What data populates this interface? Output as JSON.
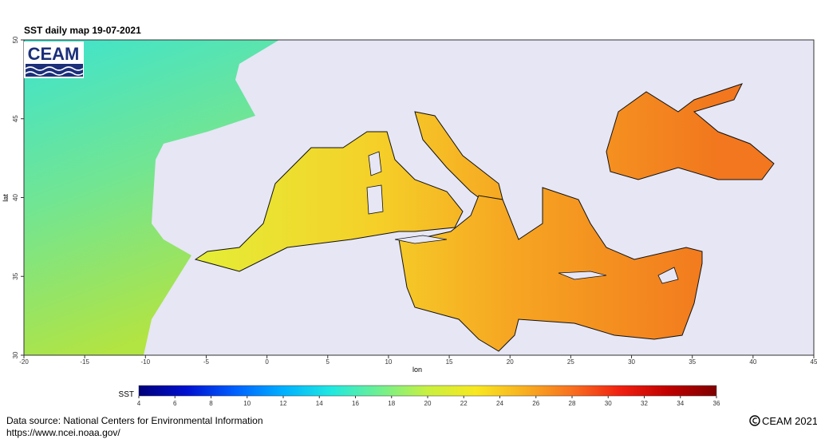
{
  "header": {
    "title": "SST daily map 19-07-2021"
  },
  "logo": "CEAM",
  "map": {
    "xlabel": "lon",
    "ylabel": "lat",
    "xlim": [
      -20,
      45
    ],
    "ylim": [
      30,
      50
    ],
    "xticks": [
      -20,
      -15,
      -10,
      -5,
      0,
      5,
      10,
      15,
      20,
      25,
      30,
      35,
      40,
      45
    ],
    "yticks": [
      30,
      35,
      40,
      45,
      50
    ]
  },
  "colorbar": {
    "label": "SST",
    "lim": [
      4,
      36
    ],
    "ticks": [
      4,
      6,
      8,
      10,
      12,
      14,
      16,
      18,
      20,
      22,
      24,
      26,
      28,
      30,
      32,
      34,
      36
    ],
    "colors": [
      "#00007a",
      "#0010d0",
      "#0060ff",
      "#00b0ff",
      "#20e8e0",
      "#70f090",
      "#c8f040",
      "#f8e820",
      "#f8b020",
      "#f87020",
      "#f02010",
      "#c00000",
      "#800000"
    ]
  },
  "footer": {
    "source": "Data source: National Centers for Environmental Information",
    "url": "https://www.ncei.noaa.gov/",
    "copyright": "CEAM 2021"
  }
}
